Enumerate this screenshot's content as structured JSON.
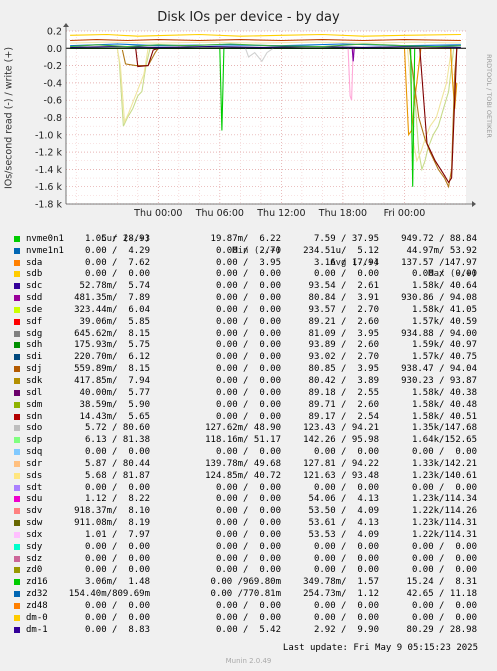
{
  "chart_data": {
    "type": "line",
    "title": "Disk IOs per device - by day",
    "ylabel": "IOs/second read (-) / write (+)",
    "ylim": [
      -1.8,
      0.2
    ],
    "yticks": [
      {
        "v": 0.2,
        "label": "0.2"
      },
      {
        "v": 0.0,
        "label": "0.0"
      },
      {
        "v": -0.2,
        "label": "-0.2"
      },
      {
        "v": -0.4,
        "label": "-0.4"
      },
      {
        "v": -0.6,
        "label": "-0.6"
      },
      {
        "v": -0.8,
        "label": "-0.8"
      },
      {
        "v": -1.0,
        "label": "-1.0 k"
      },
      {
        "v": -1.2,
        "label": "-1.2 k"
      },
      {
        "v": -1.4,
        "label": "-1.4 k"
      },
      {
        "v": -1.6,
        "label": "-1.6 k"
      },
      {
        "v": -1.8,
        "label": "-1.8 k"
      }
    ],
    "xlim": [
      -9,
      30
    ],
    "xticks": [
      {
        "v": 0,
        "label": "Thu 00:00"
      },
      {
        "v": 6,
        "label": "Thu 06:00"
      },
      {
        "v": 12,
        "label": "Thu 12:00"
      },
      {
        "v": 18,
        "label": "Thu 18:00"
      },
      {
        "v": 24,
        "label": "Fri 00:00"
      }
    ],
    "grid": true,
    "series": [
      {
        "name": "sdo",
        "color": "#c8dc8c",
        "values": [
          [
            -4,
            0
          ],
          [
            -3.8,
            -0.15
          ],
          [
            -3.4,
            -0.9
          ],
          [
            -3.0,
            -0.8
          ],
          [
            -2.5,
            -0.7
          ],
          [
            -2,
            -0.55
          ],
          [
            -1.6,
            -0.5
          ],
          [
            -1.2,
            -0.2
          ],
          [
            -0.8,
            0
          ],
          [
            24.5,
            0
          ],
          [
            24.8,
            -0.3
          ],
          [
            25.1,
            -0.7
          ],
          [
            25.4,
            -1.2
          ],
          [
            25.7,
            -1.4
          ],
          [
            26,
            -1.3
          ],
          [
            26.3,
            -1.15
          ],
          [
            26.8,
            -1.0
          ],
          [
            27.3,
            -0.9
          ],
          [
            27.8,
            -0.7
          ],
          [
            28.3,
            -0.5
          ],
          [
            28.8,
            0
          ]
        ]
      },
      {
        "name": "sds",
        "color": "#f0e6a0",
        "values": [
          [
            -4,
            0
          ],
          [
            -3.7,
            -0.2
          ],
          [
            -3.3,
            -0.85
          ],
          [
            -2.9,
            -0.75
          ],
          [
            -2.4,
            -0.6
          ],
          [
            -1.9,
            -0.45
          ],
          [
            -1.4,
            -0.3
          ],
          [
            -1.0,
            0
          ],
          [
            24.3,
            0
          ],
          [
            24.6,
            -0.4
          ],
          [
            24.9,
            -1.1
          ],
          [
            25.2,
            -1.3
          ],
          [
            25.6,
            -1.2
          ],
          [
            26,
            -1.05
          ],
          [
            26.5,
            -0.9
          ],
          [
            27.1,
            -0.8
          ],
          [
            27.6,
            -0.6
          ],
          [
            28.1,
            -0.4
          ],
          [
            28.6,
            0
          ]
        ]
      },
      {
        "name": "sdg",
        "color": "#e89600",
        "values": [
          [
            -8.6,
            0
          ],
          [
            24.0,
            0
          ],
          [
            24.2,
            -0.5
          ],
          [
            24.4,
            -1.0
          ],
          [
            24.7,
            -0.95
          ],
          [
            25,
            -0.6
          ],
          [
            25.3,
            -0.3
          ],
          [
            25.6,
            0
          ],
          [
            28.5,
            0
          ],
          [
            28.7,
            -0.4
          ],
          [
            28.9,
            -0.7
          ],
          [
            29.1,
            -0.4
          ]
        ]
      },
      {
        "name": "sdk",
        "color": "#b07818",
        "values": [
          [
            -3.5,
            -0.02
          ],
          [
            -3.2,
            -0.18
          ],
          [
            -2.2,
            -0.2
          ],
          [
            -1.0,
            -0.2
          ],
          [
            -0.3,
            -0.05
          ],
          [
            0,
            0
          ],
          [
            24.5,
            0
          ],
          [
            25.4,
            -0.8
          ],
          [
            26,
            -1.05
          ],
          [
            26.5,
            -1.2
          ],
          [
            27.3,
            -1.4
          ],
          [
            27.9,
            -1.5
          ],
          [
            28.3,
            -1.6
          ],
          [
            28.6,
            -1.4
          ],
          [
            28.9,
            -0.3
          ],
          [
            29.1,
            0
          ]
        ]
      },
      {
        "name": "sdq",
        "color": "#800000",
        "values": [
          [
            -2.2,
            0
          ],
          [
            -2.0,
            -0.21
          ],
          [
            -1.0,
            -0.2
          ],
          [
            -0.5,
            -0.02
          ],
          [
            0,
            0
          ],
          [
            25.5,
            0
          ],
          [
            26.2,
            -1.1
          ],
          [
            27,
            -1.3
          ],
          [
            27.8,
            -1.45
          ],
          [
            28.3,
            -1.55
          ],
          [
            28.6,
            -1.5
          ],
          [
            28.9,
            -0.6
          ],
          [
            29.1,
            0
          ]
        ]
      },
      {
        "name": "nvme0n1",
        "color": "#00cc00",
        "values": [
          [
            -8.6,
            0
          ],
          [
            6.0,
            0
          ],
          [
            6.2,
            -0.95
          ],
          [
            6.4,
            0
          ],
          [
            24.6,
            0
          ],
          [
            24.8,
            -1.6
          ],
          [
            25.0,
            0
          ]
        ]
      },
      {
        "name": "sdp",
        "color": "#d0d0d0",
        "values": [
          [
            8.5,
            0
          ],
          [
            8.8,
            -0.1
          ],
          [
            9.4,
            -0.05
          ],
          [
            10.1,
            -0.15
          ],
          [
            10.6,
            -0.05
          ],
          [
            11.2,
            0
          ]
        ]
      },
      {
        "name": "sdr",
        "color": "#ffa8d8",
        "values": [
          [
            18.5,
            0
          ],
          [
            18.7,
            -0.55
          ],
          [
            18.85,
            -0.6
          ],
          [
            19.0,
            0
          ]
        ]
      },
      {
        "name": "sdx",
        "color": "#8000a0",
        "values": [
          [
            18.9,
            0
          ],
          [
            19.0,
            -0.15
          ],
          [
            19.1,
            0
          ]
        ]
      },
      {
        "name": "sdc",
        "color": "#200080",
        "values": [
          [
            -8.6,
            0.01
          ],
          [
            -4,
            0.02
          ],
          [
            0,
            0.01
          ],
          [
            5,
            0.02
          ],
          [
            10,
            0.01
          ],
          [
            15,
            0.02
          ],
          [
            20,
            0.01
          ],
          [
            25,
            0.02
          ],
          [
            29.5,
            0.01
          ]
        ]
      },
      {
        "name": "sdi",
        "color": "#0070d8",
        "values": [
          [
            -8.6,
            0.03
          ],
          [
            -4,
            0.05
          ],
          [
            0,
            0.03
          ],
          [
            6,
            0.04
          ],
          [
            12,
            0.03
          ],
          [
            18,
            0.05
          ],
          [
            24,
            0.03
          ],
          [
            29.5,
            0.04
          ]
        ]
      },
      {
        "name": "zd16",
        "color": "#40b040",
        "values": [
          [
            -8.6,
            0.02
          ],
          [
            -6,
            0.04
          ],
          [
            -3,
            0.02
          ],
          [
            0,
            0.04
          ],
          [
            3,
            0.03
          ],
          [
            7,
            0.05
          ],
          [
            11,
            0.03
          ],
          [
            16,
            0.02
          ],
          [
            20,
            0.05
          ],
          [
            24,
            0.03
          ],
          [
            27,
            0.02
          ],
          [
            29.5,
            0.03
          ]
        ]
      },
      {
        "name": "zd32",
        "color": "#c04000",
        "values": [
          [
            -8.6,
            0.09
          ],
          [
            -6,
            0.1
          ],
          [
            -3,
            0.09
          ],
          [
            0,
            0.1
          ],
          [
            4,
            0.09
          ],
          [
            8,
            0.1
          ],
          [
            12,
            0.09
          ],
          [
            16,
            0.1
          ],
          [
            20,
            0.09
          ],
          [
            24,
            0.1
          ],
          [
            29.5,
            0.09
          ]
        ]
      },
      {
        "name": "sdb",
        "color": "#ffd000",
        "values": [
          [
            -8.6,
            0.15
          ],
          [
            -5,
            0.16
          ],
          [
            -2,
            0.14
          ],
          [
            1,
            0.15
          ],
          [
            4,
            0.16
          ],
          [
            8,
            0.14
          ],
          [
            12,
            0.15
          ],
          [
            16,
            0.16
          ],
          [
            20,
            0.14
          ],
          [
            24,
            0.15
          ],
          [
            29.5,
            0.16
          ]
        ]
      },
      {
        "name": "dm-0",
        "color": "#f0e8b0",
        "values": [
          [
            -8.6,
            0.06
          ],
          [
            -5,
            0.07
          ],
          [
            0,
            0.06
          ],
          [
            5,
            0.07
          ],
          [
            10,
            0.06
          ],
          [
            15,
            0.07
          ],
          [
            20,
            0.06
          ],
          [
            25,
            0.07
          ],
          [
            29.5,
            0.06
          ]
        ]
      }
    ]
  },
  "legend": {
    "headers": {
      "cur": "Cur (-/+)",
      "min": "Min (-/+)",
      "avg": "Avg (-/+)",
      "max": "Max (-/+)"
    },
    "rows": [
      {
        "name": "nvme0n1",
        "color": "#00cc00",
        "cur": "1.05 / 28.93",
        "min": "19.87m/  6.22",
        "avg": "7.59 / 37.95",
        "max": "949.72 / 88.84"
      },
      {
        "name": "nvme1n1",
        "color": "#0066b3",
        "cur": "0.00 /  4.29",
        "min": "0.00 /  2.70",
        "avg": "234.51u/  5.12",
        "max": "44.97m/ 53.92"
      },
      {
        "name": "sda",
        "color": "#ff8000",
        "cur": "0.00 /  7.62",
        "min": "0.00 /  3.95",
        "avg": "3.16 / 17.94",
        "max": "137.57 /147.97"
      },
      {
        "name": "sdb",
        "color": "#ffcc00",
        "cur": "0.00 /  0.00",
        "min": "0.00 /  0.00",
        "avg": "0.00 /  0.00",
        "max": "0.00 /  0.00"
      },
      {
        "name": "sdc",
        "color": "#330099",
        "cur": "52.78m/  5.74",
        "min": "0.00 /  0.00",
        "avg": "93.54 /  2.61",
        "max": "1.58k/ 40.64"
      },
      {
        "name": "sdd",
        "color": "#990099",
        "cur": "481.35m/  7.89",
        "min": "0.00 /  0.00",
        "avg": "80.84 /  3.91",
        "max": "930.86 / 94.08"
      },
      {
        "name": "sde",
        "color": "#ccff00",
        "cur": "323.44m/  6.04",
        "min": "0.00 /  0.00",
        "avg": "93.57 /  2.70",
        "max": "1.58k/ 41.05"
      },
      {
        "name": "sdf",
        "color": "#ff0000",
        "cur": "39.06m/  5.85",
        "min": "0.00 /  0.00",
        "avg": "89.21 /  2.60",
        "max": "1.57k/ 40.59"
      },
      {
        "name": "sdg",
        "color": "#808080",
        "cur": "645.62m/  8.15",
        "min": "0.00 /  0.00",
        "avg": "81.09 /  3.95",
        "max": "934.88 / 94.00"
      },
      {
        "name": "sdh",
        "color": "#008f00",
        "cur": "175.93m/  5.75",
        "min": "0.00 /  0.00",
        "avg": "93.89 /  2.60",
        "max": "1.59k/ 40.97"
      },
      {
        "name": "sdi",
        "color": "#00487d",
        "cur": "220.70m/  6.12",
        "min": "0.00 /  0.00",
        "avg": "93.02 /  2.70",
        "max": "1.57k/ 40.75"
      },
      {
        "name": "sdj",
        "color": "#b35a00",
        "cur": "559.89m/  8.15",
        "min": "0.00 /  0.00",
        "avg": "80.85 /  3.95",
        "max": "938.47 / 94.04"
      },
      {
        "name": "sdk",
        "color": "#b38f00",
        "cur": "417.85m/  7.94",
        "min": "0.00 /  0.00",
        "avg": "80.42 /  3.89",
        "max": "930.23 / 93.87"
      },
      {
        "name": "sdl",
        "color": "#6b006b",
        "cur": "40.00m/  5.77",
        "min": "0.00 /  0.00",
        "avg": "89.18 /  2.55",
        "max": "1.58k/ 40.38"
      },
      {
        "name": "sdm",
        "color": "#8fb300",
        "cur": "38.59m/  5.90",
        "min": "0.00 /  0.00",
        "avg": "89.71 /  2.60",
        "max": "1.58k/ 40.48"
      },
      {
        "name": "sdn",
        "color": "#b30000",
        "cur": "14.43m/  5.65",
        "min": "0.00 /  0.00",
        "avg": "89.17 /  2.54",
        "max": "1.58k/ 40.51"
      },
      {
        "name": "sdo",
        "color": "#bebebe",
        "cur": "5.72 / 80.60",
        "min": "127.62m/ 48.90",
        "avg": "123.43 / 94.21",
        "max": "1.35k/147.68"
      },
      {
        "name": "sdp",
        "color": "#80ff80",
        "cur": "6.13 / 81.38",
        "min": "118.16m/ 51.17",
        "avg": "142.26 / 95.98",
        "max": "1.64k/152.65"
      },
      {
        "name": "sdq",
        "color": "#80c9ff",
        "cur": "0.00 /  0.00",
        "min": "0.00 /  0.00",
        "avg": "0.00 /  0.00",
        "max": "0.00 /  0.00"
      },
      {
        "name": "sdr",
        "color": "#ffc080",
        "cur": "5.87 / 80.44",
        "min": "139.78m/ 49.68",
        "avg": "127.81 / 94.22",
        "max": "1.33k/142.21"
      },
      {
        "name": "sds",
        "color": "#ffe680",
        "cur": "5.68 / 81.87",
        "min": "124.85m/ 40.72",
        "avg": "121.63 / 93.48",
        "max": "1.23k/140.61"
      },
      {
        "name": "sdt",
        "color": "#aa80ff",
        "cur": "0.00 /  0.00",
        "min": "0.00 /  0.00",
        "avg": "0.00 /  0.00",
        "max": "0.00 /  0.00"
      },
      {
        "name": "sdu",
        "color": "#ee00cc",
        "cur": "1.12 /  8.22",
        "min": "0.00 /  0.00",
        "avg": "54.06 /  4.13",
        "max": "1.23k/114.34"
      },
      {
        "name": "sdv",
        "color": "#ff8080",
        "cur": "918.37m/  8.10",
        "min": "0.00 /  0.00",
        "avg": "53.50 /  4.09",
        "max": "1.22k/114.26"
      },
      {
        "name": "sdw",
        "color": "#666600",
        "cur": "911.08m/  8.19",
        "min": "0.00 /  0.00",
        "avg": "53.61 /  4.13",
        "max": "1.23k/114.31"
      },
      {
        "name": "sdx",
        "color": "#ffbfff",
        "cur": "1.01 /  7.97",
        "min": "0.00 /  0.00",
        "avg": "53.53 /  4.09",
        "max": "1.22k/114.31"
      },
      {
        "name": "sdy",
        "color": "#00ffcc",
        "cur": "0.00 /  0.00",
        "min": "0.00 /  0.00",
        "avg": "0.00 /  0.00",
        "max": "0.00 /  0.00"
      },
      {
        "name": "sdz",
        "color": "#cc6699",
        "cur": "0.00 /  0.00",
        "min": "0.00 /  0.00",
        "avg": "0.00 /  0.00",
        "max": "0.00 /  0.00"
      },
      {
        "name": "zd0",
        "color": "#999900",
        "cur": "0.00 /  0.00",
        "min": "0.00 /  0.00",
        "avg": "0.00 /  0.00",
        "max": "0.00 /  0.00"
      },
      {
        "name": "zd16",
        "color": "#00cc00",
        "cur": "3.06m/  1.48",
        "min": "0.00 /969.80m",
        "avg": "349.78m/  1.57",
        "max": "15.24 /  8.31"
      },
      {
        "name": "zd32",
        "color": "#0066b3",
        "cur": "154.40m/809.69m",
        "min": "0.00 /770.81m",
        "avg": "254.73m/  1.12",
        "max": "42.65 / 11.18"
      },
      {
        "name": "zd48",
        "color": "#ff8000",
        "cur": "0.00 /  0.00",
        "min": "0.00 /  0.00",
        "avg": "0.00 /  0.00",
        "max": "0.00 /  0.00"
      },
      {
        "name": "dm-0",
        "color": "#ffcc00",
        "cur": "0.00 /  0.00",
        "min": "0.00 /  0.00",
        "avg": "0.00 /  0.00",
        "max": "0.00 /  0.00"
      },
      {
        "name": "dm-1",
        "color": "#330099",
        "cur": "0.00 /  8.83",
        "min": "0.00 /  5.42",
        "avg": "2.92 /  9.90",
        "max": "80.29 / 28.98"
      }
    ]
  },
  "footer": {
    "last_update": "Last update: Fri May  9 05:15:23 2025",
    "munin": "Munin 2.0.49"
  },
  "sidetext": "RRDTOOL / TOBI OETIKER"
}
